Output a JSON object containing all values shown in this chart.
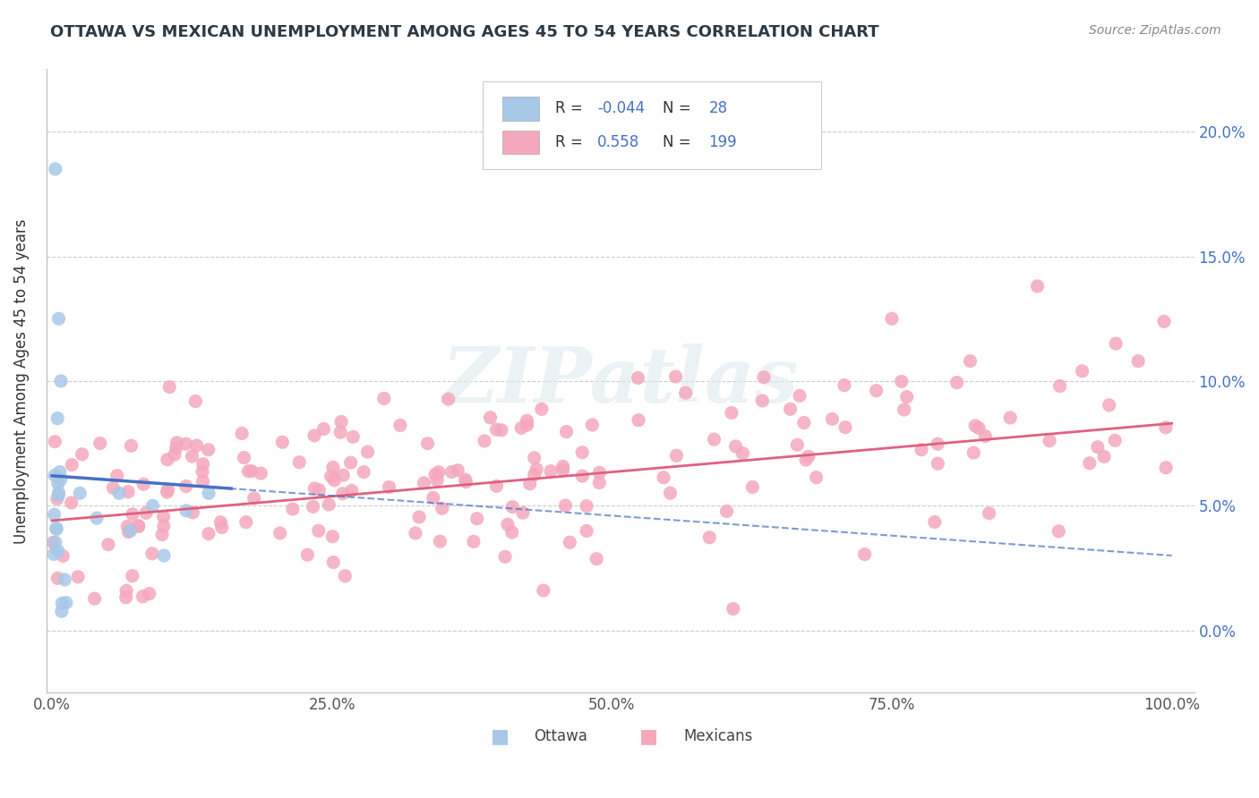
{
  "title": "OTTAWA VS MEXICAN UNEMPLOYMENT AMONG AGES 45 TO 54 YEARS CORRELATION CHART",
  "source": "Source: ZipAtlas.com",
  "ylabel": "Unemployment Among Ages 45 to 54 years",
  "xlim": [
    -0.005,
    1.02
  ],
  "ylim": [
    -0.025,
    0.225
  ],
  "xticks": [
    0.0,
    0.25,
    0.5,
    0.75,
    1.0
  ],
  "xtick_labels": [
    "0.0%",
    "25.0%",
    "50.0%",
    "75.0%",
    "100.0%"
  ],
  "ytick_vals": [
    0.0,
    0.05,
    0.1,
    0.15,
    0.2
  ],
  "ytick_labels": [
    "0.0%",
    "5.0%",
    "10.0%",
    "15.0%",
    "20.0%"
  ],
  "ottawa_dot_color": "#a8c8e8",
  "mexican_dot_color": "#f4a8bc",
  "ottawa_R": -0.044,
  "ottawa_N": 28,
  "mexican_R": 0.558,
  "mexican_N": 199,
  "legend_label_ottawa": "Ottawa",
  "legend_label_mexicans": "Mexicans",
  "background_color": "#ffffff",
  "grid_color": "#cccccc",
  "title_color": "#2d3a45",
  "ytick_color": "#4472c4",
  "xtick_color": "#555555",
  "value_color": "#4472c4",
  "watermark_color": "#dce8f0",
  "mexican_trend_color": "#e06080",
  "ottawa_trend_color": "#4472c4",
  "ottawa_trend_solid_color": "#4472c4",
  "mexican_trendline": [
    0.0,
    0.044,
    1.0,
    0.083
  ],
  "ottawa_trendline_dashed": [
    0.0,
    0.062,
    1.0,
    0.03
  ],
  "ottawa_trendline_solid_end_x": 0.16,
  "dot_size": 120,
  "seed": 99
}
